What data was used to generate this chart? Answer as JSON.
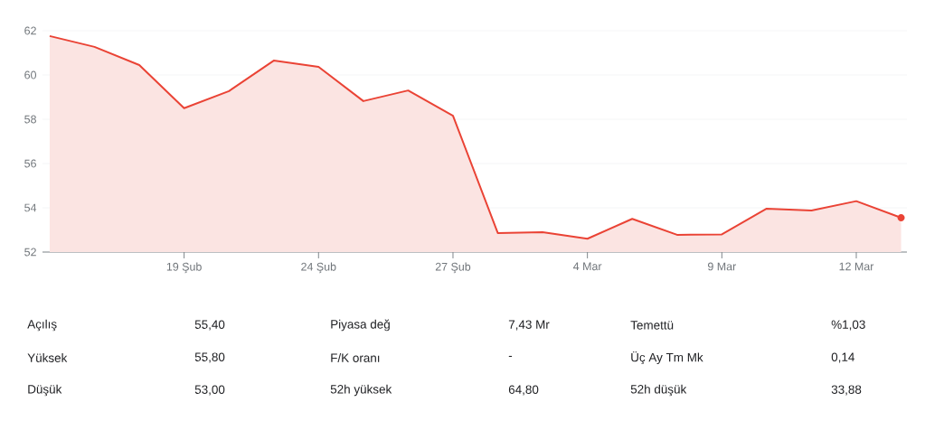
{
  "chart_data": [
    {
      "type": "area",
      "color": "#ea4335",
      "grid": "y",
      "categories": [
        null,
        null,
        null,
        "19 Şub",
        null,
        null,
        "24 Şub",
        null,
        null,
        "27 Şub",
        null,
        null,
        "4 Mar",
        null,
        null,
        "9 Mar",
        null,
        null,
        "12 Mar",
        null
      ],
      "values": [
        61.76,
        61.27,
        60.45,
        58.5,
        59.27,
        60.65,
        60.37,
        58.82,
        59.3,
        58.16,
        52.86,
        52.9,
        52.6,
        53.5,
        52.78,
        52.8,
        53.96,
        53.88,
        54.3,
        53.55
      ],
      "ylim": [
        52,
        62
      ],
      "yticks": [
        52,
        54,
        56,
        58,
        60,
        62
      ]
    },
    {
      "type": "other",
      "annotations": [
        "Açılış",
        "55,40",
        "Piyasa değ",
        "7,43 Mr",
        "Temettü",
        "%1,03",
        "Yüksek",
        "55,80",
        "F/K oranı",
        "-",
        "Üç Ay Tm Mk",
        "0,14",
        "Düşük",
        "53,00",
        "52h yüksek",
        "64,80",
        "52h düşük",
        "33,88"
      ]
    }
  ]
}
